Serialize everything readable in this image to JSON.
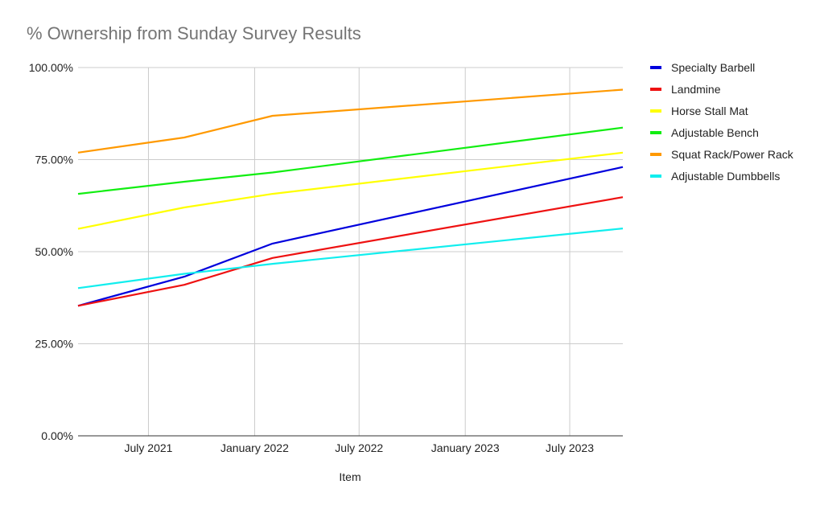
{
  "chart_data": {
    "type": "line",
    "title": "% Ownership from Sunday Survey Results",
    "xlabel": "Item",
    "ylabel": "",
    "ylim": [
      0,
      100
    ],
    "y_ticks": [
      0,
      25,
      50,
      75,
      100
    ],
    "y_tick_labels": [
      "0.00%",
      "25.00%",
      "50.00%",
      "75.00%",
      "100.00%"
    ],
    "x_range": [
      "2021-03-01",
      "2023-10-01"
    ],
    "x_ticks": [
      "2021-07-01",
      "2022-01-01",
      "2022-07-01",
      "2023-01-01",
      "2023-07-01"
    ],
    "x_tick_labels": [
      "July 2021",
      "January 2022",
      "July 2022",
      "January 2023",
      "July 2023"
    ],
    "grid": true,
    "legend_position": "right",
    "x": [
      "2021-03-01",
      "2021-09-01",
      "2022-02-01",
      "2023-10-01"
    ],
    "series": [
      {
        "name": "Specialty Barbell",
        "color": "#0000dd",
        "values": [
          35.3,
          43.2,
          52.2,
          73.0
        ]
      },
      {
        "name": "Landmine",
        "color": "#ee1111",
        "values": [
          35.3,
          41.0,
          48.3,
          64.8
        ]
      },
      {
        "name": "Horse Stall Mat",
        "color": "#ffff00",
        "values": [
          56.2,
          62.0,
          65.7,
          76.9
        ]
      },
      {
        "name": "Adjustable Bench",
        "color": "#11ee11",
        "values": [
          65.7,
          69.0,
          71.5,
          83.7
        ]
      },
      {
        "name": "Squat Rack/Power Rack",
        "color": "#ff9900",
        "values": [
          76.9,
          81.0,
          86.9,
          94.0
        ]
      },
      {
        "name": "Adjustable Dumbbells",
        "color": "#11eeee",
        "values": [
          40.1,
          44.0,
          46.7,
          56.3
        ]
      }
    ]
  }
}
